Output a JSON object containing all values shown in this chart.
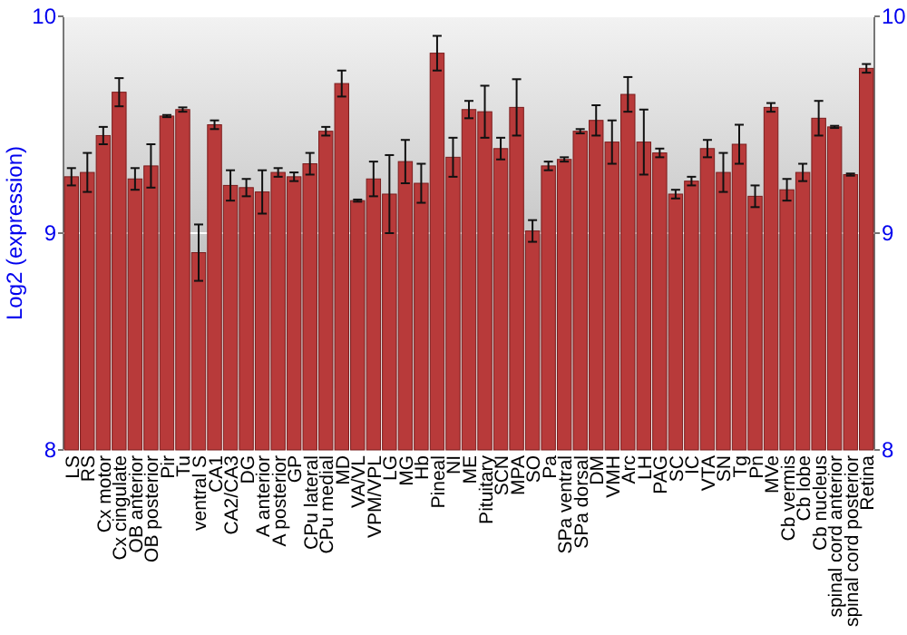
{
  "chart_data": {
    "type": "bar",
    "ylabel": "Log2 (expression)",
    "categories": [
      "LS",
      "RS",
      "Cx motor",
      "Cx cingulate",
      "OB anterior",
      "OB posterior",
      "Pir",
      "Tu",
      "ventral S",
      "CA1",
      "CA2/CA3",
      "DG",
      "A anterior",
      "A posterior",
      "GP",
      "CPu lateral",
      "CPu medial",
      "MD",
      "VA/VL",
      "VPM/VPL",
      "LG",
      "MG",
      "Hb",
      "Pineal",
      "NI",
      "ME",
      "Pituitary",
      "SCN",
      "MPA",
      "SO",
      "Pa",
      "SPa ventral",
      "SPa dorsal",
      "DM",
      "VMH",
      "Arc",
      "LH",
      "PAG",
      "SC",
      "IC",
      "VTA",
      "SN",
      "Tg",
      "Pn",
      "MVe",
      "Cb vermis",
      "Cb lobe",
      "Cb nucleus",
      "spinal cord anterior",
      "spinal cord posterior",
      "Retina"
    ],
    "values": [
      9.26,
      9.28,
      9.45,
      9.65,
      9.25,
      9.31,
      9.54,
      9.57,
      8.91,
      9.5,
      9.22,
      9.21,
      9.19,
      9.28,
      9.26,
      9.32,
      9.47,
      9.69,
      9.15,
      9.25,
      9.18,
      9.33,
      9.23,
      9.83,
      9.35,
      9.57,
      9.56,
      9.39,
      9.58,
      9.01,
      9.31,
      9.34,
      9.47,
      9.52,
      9.42,
      9.64,
      9.42,
      9.37,
      9.18,
      9.24,
      9.39,
      9.28,
      9.41,
      9.17,
      9.58,
      9.2,
      9.28,
      9.53,
      9.49,
      9.27,
      9.76
    ],
    "errors": [
      0.04,
      0.09,
      0.04,
      0.065,
      0.05,
      0.1,
      0.005,
      0.01,
      0.13,
      0.02,
      0.07,
      0.04,
      0.1,
      0.02,
      0.02,
      0.05,
      0.02,
      0.06,
      0.005,
      0.08,
      0.18,
      0.1,
      0.09,
      0.08,
      0.09,
      0.04,
      0.12,
      0.05,
      0.13,
      0.05,
      0.02,
      0.01,
      0.01,
      0.07,
      0.1,
      0.08,
      0.15,
      0.02,
      0.02,
      0.02,
      0.04,
      0.09,
      0.09,
      0.05,
      0.02,
      0.05,
      0.04,
      0.08,
      0.005,
      0.005,
      0.02
    ],
    "color": "#b83a3a",
    "ylim": [
      8,
      10
    ],
    "yticks": [
      8,
      9,
      10
    ],
    "y2lim": [
      8,
      10
    ],
    "y2ticks": [
      8,
      9,
      10
    ],
    "grid": "y"
  }
}
